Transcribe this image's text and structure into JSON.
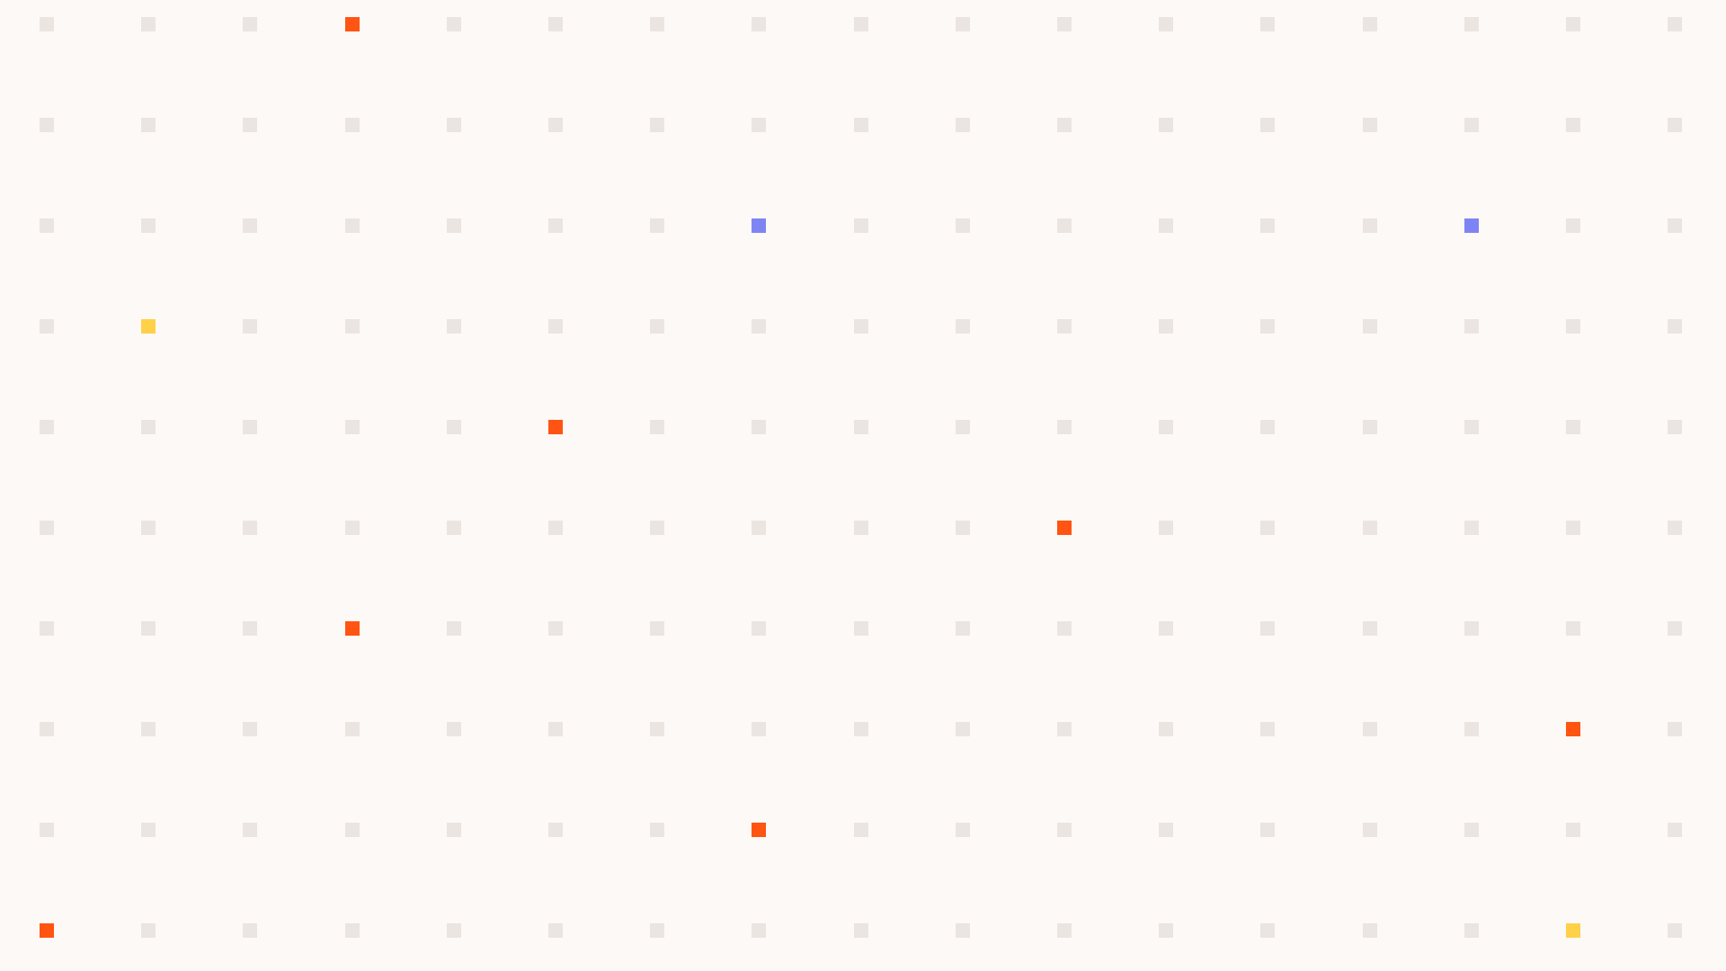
{
  "background": "#fdf9f6",
  "grid": {
    "columns": 17,
    "rows": 10,
    "default_color": "#ebe5e2"
  },
  "palette": {
    "orange": "#ff5412",
    "blue": "#7f84f4",
    "yellow": "#ffd148"
  },
  "highlights": [
    {
      "row": 0,
      "col": 3,
      "color": "orange"
    },
    {
      "row": 2,
      "col": 7,
      "color": "blue"
    },
    {
      "row": 2,
      "col": 14,
      "color": "blue"
    },
    {
      "row": 3,
      "col": 1,
      "color": "yellow"
    },
    {
      "row": 4,
      "col": 5,
      "color": "orange"
    },
    {
      "row": 5,
      "col": 10,
      "color": "orange"
    },
    {
      "row": 6,
      "col": 3,
      "color": "orange"
    },
    {
      "row": 7,
      "col": 15,
      "color": "orange"
    },
    {
      "row": 8,
      "col": 7,
      "color": "orange"
    },
    {
      "row": 9,
      "col": 0,
      "color": "orange"
    },
    {
      "row": 9,
      "col": 15,
      "color": "yellow"
    }
  ]
}
